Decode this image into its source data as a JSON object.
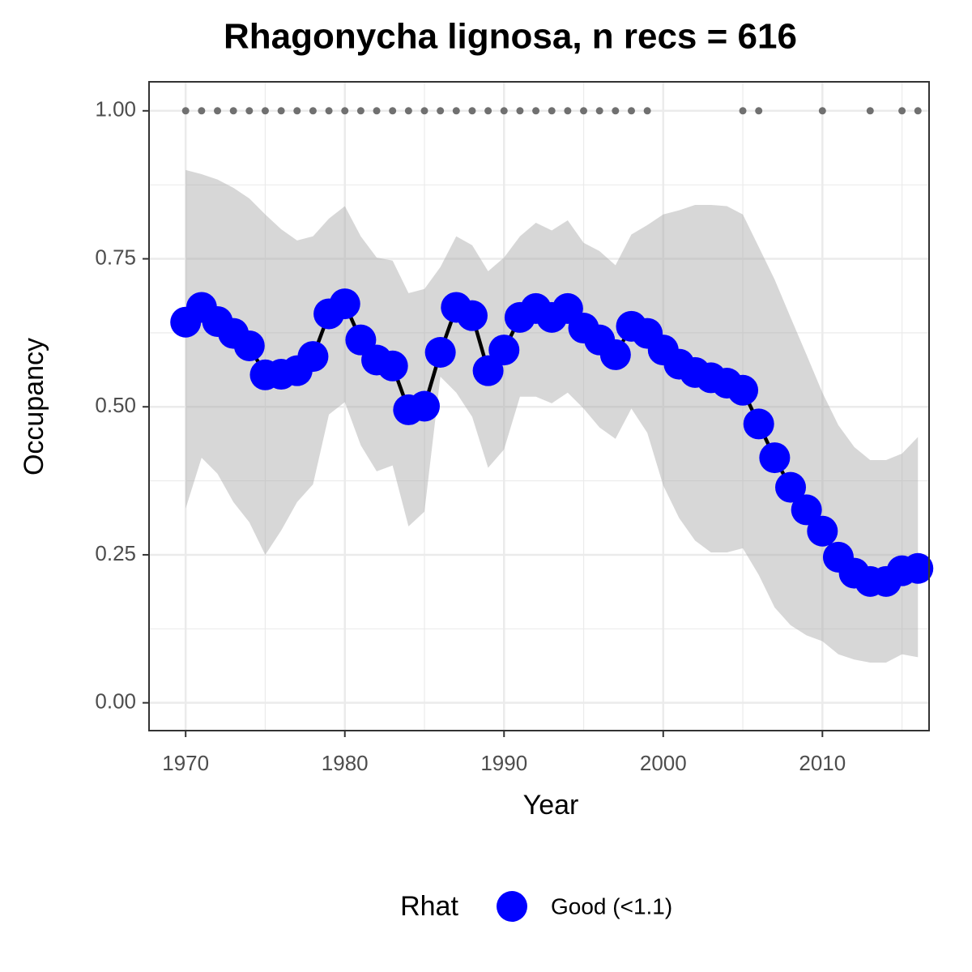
{
  "chart_data": {
    "type": "line",
    "title": "Rhagonycha lignosa, n recs = 616",
    "x_label": "Year",
    "y_label": "Occupancy",
    "legend_title": "Rhat",
    "legend_position": "bottom",
    "grid": true,
    "x": [
      1970,
      1971,
      1972,
      1973,
      1974,
      1975,
      1976,
      1977,
      1978,
      1979,
      1980,
      1981,
      1982,
      1983,
      1984,
      1985,
      1986,
      1987,
      1988,
      1989,
      1990,
      1991,
      1992,
      1993,
      1994,
      1995,
      1996,
      1997,
      1998,
      1999,
      2000,
      2001,
      2002,
      2003,
      2004,
      2005,
      2006,
      2007,
      2008,
      2009,
      2010,
      2011,
      2012,
      2013,
      2014,
      2015,
      2016
    ],
    "series": [
      {
        "name": "Good (<1.1)",
        "color": "#0000ff",
        "line_color": "#000000",
        "values": [
          0.643,
          0.668,
          0.644,
          0.624,
          0.603,
          0.554,
          0.555,
          0.561,
          0.585,
          0.657,
          0.674,
          0.613,
          0.579,
          0.569,
          0.495,
          0.501,
          0.592,
          0.668,
          0.654,
          0.561,
          0.596,
          0.651,
          0.666,
          0.651,
          0.666,
          0.633,
          0.613,
          0.588,
          0.636,
          0.624,
          0.596,
          0.572,
          0.558,
          0.549,
          0.54,
          0.528,
          0.471,
          0.414,
          0.364,
          0.326,
          0.29,
          0.246,
          0.219,
          0.205,
          0.205,
          0.223,
          0.227
        ]
      }
    ],
    "ribbon": {
      "color": "#a6a6a6",
      "upper": [
        0.9,
        0.893,
        0.884,
        0.87,
        0.852,
        0.825,
        0.8,
        0.781,
        0.788,
        0.818,
        0.839,
        0.788,
        0.752,
        0.747,
        0.692,
        0.699,
        0.736,
        0.788,
        0.773,
        0.729,
        0.752,
        0.788,
        0.811,
        0.798,
        0.815,
        0.777,
        0.763,
        0.739,
        0.791,
        0.807,
        0.825,
        0.832,
        0.841,
        0.841,
        0.839,
        0.825,
        0.77,
        0.715,
        0.651,
        0.588,
        0.524,
        0.469,
        0.432,
        0.41,
        0.41,
        0.421,
        0.449
      ],
      "lower": [
        0.328,
        0.414,
        0.387,
        0.339,
        0.305,
        0.25,
        0.291,
        0.339,
        0.369,
        0.487,
        0.508,
        0.435,
        0.391,
        0.401,
        0.298,
        0.323,
        0.551,
        0.524,
        0.483,
        0.397,
        0.428,
        0.517,
        0.517,
        0.506,
        0.524,
        0.497,
        0.465,
        0.446,
        0.497,
        0.456,
        0.367,
        0.312,
        0.274,
        0.254,
        0.254,
        0.261,
        0.216,
        0.161,
        0.131,
        0.114,
        0.104,
        0.082,
        0.073,
        0.068,
        0.068,
        0.082,
        0.077
      ]
    },
    "detections": {
      "color": "#707070",
      "x": [
        1970,
        1971,
        1972,
        1973,
        1974,
        1975,
        1976,
        1977,
        1978,
        1979,
        1980,
        1981,
        1982,
        1983,
        1984,
        1985,
        1986,
        1987,
        1988,
        1989,
        1990,
        1991,
        1992,
        1993,
        1994,
        1995,
        1996,
        1997,
        1998,
        1999,
        2005,
        2006,
        2010,
        2013,
        2015,
        2016
      ],
      "values": [
        1,
        1,
        1,
        1,
        1,
        1,
        1,
        1,
        1,
        1,
        1,
        1,
        1,
        1,
        1,
        1,
        1,
        1,
        1,
        1,
        1,
        1,
        1,
        1,
        1,
        1,
        1,
        1,
        1,
        1,
        1,
        1,
        1,
        1,
        1,
        1
      ]
    },
    "xlim": [
      1967.7,
      2016.7
    ],
    "ylim": [
      -0.047,
      1.049
    ],
    "xticks": [
      1970,
      1980,
      1990,
      2000,
      2010
    ],
    "x_minor_ticks": [
      1975,
      1985,
      1995,
      2005,
      2015
    ],
    "yticks": [
      {
        "value": 0,
        "label": "0.00"
      },
      {
        "value": 0.25,
        "label": "0.25"
      },
      {
        "value": 0.5,
        "label": "0.50"
      },
      {
        "value": 0.75,
        "label": "0.75"
      },
      {
        "value": 1,
        "label": "1.00"
      }
    ],
    "y_minor_ticks": [
      0.125,
      0.375,
      0.625,
      0.875
    ]
  }
}
